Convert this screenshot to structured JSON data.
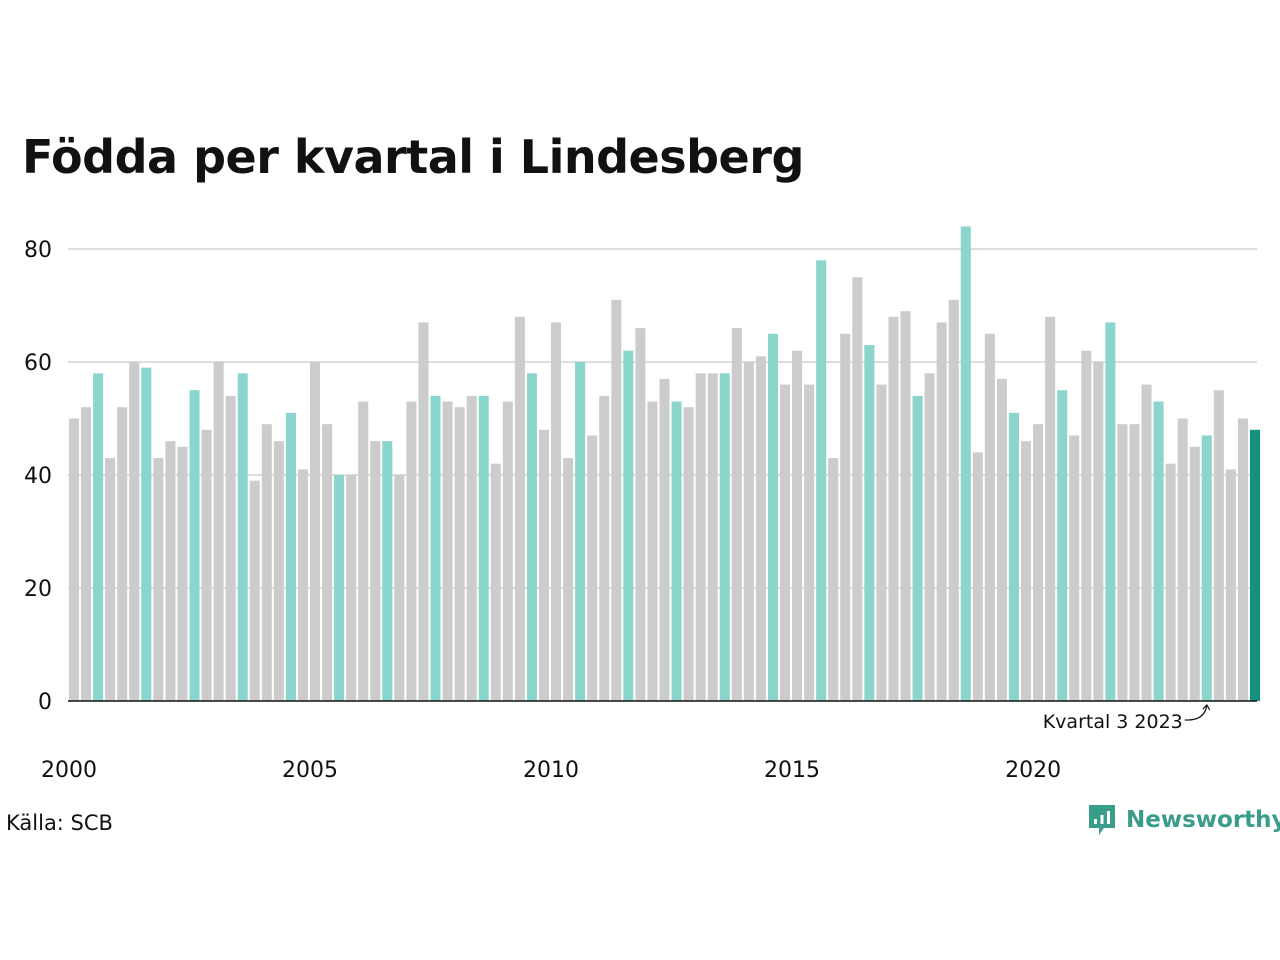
{
  "title": "Födda per kvartal i Lindesberg",
  "source": "Källa: SCB",
  "brand": {
    "name": "Newsworthy",
    "icon": "newsworthy-logo-icon"
  },
  "colors": {
    "regular": "#cccccc",
    "highlight": "#8ad6cc",
    "latest": "#13937f",
    "brand": "#3a9d8a",
    "grid": "#dddddd",
    "axis": "#111111"
  },
  "chart_data": {
    "type": "bar",
    "title": "Födda per kvartal i Lindesberg",
    "xlabel": "",
    "ylabel": "",
    "ylim": [
      0,
      85
    ],
    "yticks": [
      0,
      20,
      40,
      60,
      80
    ],
    "xtick_labels": [
      "2000",
      "2005",
      "2010",
      "2015",
      "2020"
    ],
    "grid": "horizontal",
    "legend": "none",
    "highlight_quarter": 3,
    "annotation": {
      "text": "Kvartal 3 2023",
      "target": "2023 Q3"
    },
    "categories": [
      "2000 Q1",
      "2000 Q2",
      "2000 Q3",
      "2000 Q4",
      "2001 Q1",
      "2001 Q2",
      "2001 Q3",
      "2001 Q4",
      "2002 Q1",
      "2002 Q2",
      "2002 Q3",
      "2002 Q4",
      "2003 Q1",
      "2003 Q2",
      "2003 Q3",
      "2003 Q4",
      "2004 Q1",
      "2004 Q2",
      "2004 Q3",
      "2004 Q4",
      "2005 Q1",
      "2005 Q2",
      "2005 Q3",
      "2005 Q4",
      "2006 Q1",
      "2006 Q2",
      "2006 Q3",
      "2006 Q4",
      "2007 Q1",
      "2007 Q2",
      "2007 Q3",
      "2007 Q4",
      "2008 Q1",
      "2008 Q2",
      "2008 Q3",
      "2008 Q4",
      "2009 Q1",
      "2009 Q2",
      "2009 Q3",
      "2009 Q4",
      "2010 Q1",
      "2010 Q2",
      "2010 Q3",
      "2010 Q4",
      "2011 Q1",
      "2011 Q2",
      "2011 Q3",
      "2011 Q4",
      "2012 Q1",
      "2012 Q2",
      "2012 Q3",
      "2012 Q4",
      "2013 Q1",
      "2013 Q2",
      "2013 Q3",
      "2013 Q4",
      "2014 Q1",
      "2014 Q2",
      "2014 Q3",
      "2014 Q4",
      "2015 Q1",
      "2015 Q2",
      "2015 Q3",
      "2015 Q4",
      "2016 Q1",
      "2016 Q2",
      "2016 Q3",
      "2016 Q4",
      "2017 Q1",
      "2017 Q2",
      "2017 Q3",
      "2017 Q4",
      "2018 Q1",
      "2018 Q2",
      "2018 Q3",
      "2018 Q4",
      "2019 Q1",
      "2019 Q2",
      "2019 Q3",
      "2019 Q4",
      "2020 Q1",
      "2020 Q2",
      "2020 Q3",
      "2020 Q4",
      "2021 Q1",
      "2021 Q2",
      "2021 Q3",
      "2021 Q4",
      "2022 Q1",
      "2022 Q2",
      "2022 Q3",
      "2022 Q4",
      "2023 Q1",
      "2023 Q2",
      "2023 Q3",
      "2023 Q4",
      "2024 Q1",
      "2024 Q2",
      "2024 Q3"
    ],
    "values": [
      50,
      52,
      58,
      43,
      52,
      60,
      59,
      43,
      46,
      45,
      55,
      48,
      60,
      54,
      58,
      39,
      49,
      46,
      51,
      41,
      60,
      49,
      40,
      40,
      53,
      46,
      46,
      40,
      53,
      67,
      54,
      53,
      52,
      54,
      54,
      42,
      53,
      68,
      58,
      48,
      67,
      43,
      60,
      47,
      54,
      71,
      62,
      66,
      53,
      57,
      53,
      52,
      58,
      58,
      58,
      66,
      60,
      61,
      65,
      56,
      62,
      56,
      78,
      43,
      65,
      75,
      63,
      56,
      68,
      69,
      54,
      58,
      67,
      71,
      84,
      44,
      65,
      57,
      51,
      46,
      49,
      68,
      55,
      47,
      62,
      60,
      67,
      49,
      49,
      56,
      53,
      42,
      50,
      45,
      47,
      55,
      41,
      50,
      48
    ]
  }
}
